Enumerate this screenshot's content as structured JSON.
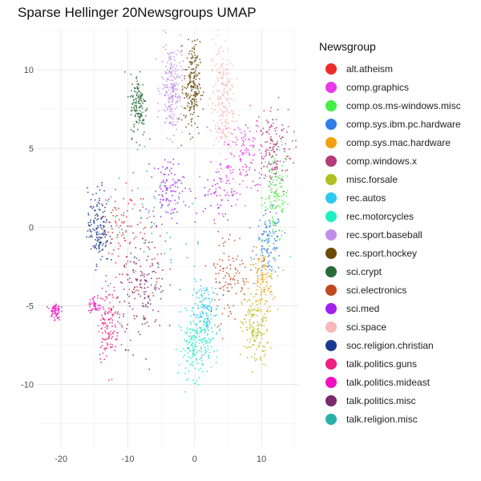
{
  "chart_data": {
    "type": "scatter",
    "title": "Sparse Hellinger 20Newsgroups UMAP",
    "xlabel": "",
    "ylabel": "",
    "xlim": [
      -23.5,
      15.5
    ],
    "ylim": [
      -14,
      12.6
    ],
    "x_ticks": [
      -20,
      -10,
      0,
      10
    ],
    "y_ticks": [
      10,
      5,
      0,
      -5,
      -10
    ],
    "grid": true,
    "legend_title": "Newsgroup",
    "legend_position": "right",
    "series": [
      {
        "name": "alt.atheism",
        "color": "#ee2b2b",
        "clusters": [
          {
            "x": -11.5,
            "y": 0,
            "sx": 1.2,
            "sy": 1.2,
            "n": 60
          },
          {
            "x": -8,
            "y": -1.5,
            "sx": 2,
            "sy": 2,
            "n": 50
          }
        ]
      },
      {
        "name": "comp.graphics",
        "color": "#e83be8",
        "clusters": [
          {
            "x": 7,
            "y": 5,
            "sx": 1.5,
            "sy": 1.2,
            "n": 90
          },
          {
            "x": 5,
            "y": 3,
            "sx": 1.5,
            "sy": 1,
            "n": 50
          }
        ]
      },
      {
        "name": "comp.os.ms-windows.misc",
        "color": "#44ee44",
        "clusters": [
          {
            "x": 12,
            "y": 2,
            "sx": 1,
            "sy": 1.5,
            "n": 140
          }
        ]
      },
      {
        "name": "comp.sys.ibm.pc.hardware",
        "color": "#2f7fe8",
        "clusters": [
          {
            "x": 11,
            "y": -1,
            "sx": 1,
            "sy": 1,
            "n": 110
          }
        ]
      },
      {
        "name": "comp.sys.mac.hardware",
        "color": "#f0a010",
        "clusters": [
          {
            "x": 10,
            "y": -3.5,
            "sx": 1,
            "sy": 1,
            "n": 110
          }
        ]
      },
      {
        "name": "comp.windows.x",
        "color": "#b43a7a",
        "clusters": [
          {
            "x": 11.5,
            "y": 5,
            "sx": 1.5,
            "sy": 1.4,
            "n": 160
          }
        ]
      },
      {
        "name": "misc.forsale",
        "color": "#b0c020",
        "clusters": [
          {
            "x": 9,
            "y": -6.5,
            "sx": 1,
            "sy": 1.2,
            "n": 150
          }
        ]
      },
      {
        "name": "rec.autos",
        "color": "#30c8f0",
        "clusters": [
          {
            "x": 1.5,
            "y": -5.5,
            "sx": 1,
            "sy": 1,
            "n": 160
          }
        ]
      },
      {
        "name": "rec.motorcycles",
        "color": "#20f0c0",
        "clusters": [
          {
            "x": 0,
            "y": -7.5,
            "sx": 1.2,
            "sy": 1,
            "n": 170
          }
        ]
      },
      {
        "name": "rec.sport.baseball",
        "color": "#c08ee8",
        "clusters": [
          {
            "x": -3.5,
            "y": 8.8,
            "sx": 0.8,
            "sy": 1.5,
            "n": 220
          }
        ]
      },
      {
        "name": "rec.sport.hockey",
        "color": "#6a4a06",
        "clusters": [
          {
            "x": -0.5,
            "y": 9,
            "sx": 0.6,
            "sy": 1.4,
            "n": 200
          }
        ]
      },
      {
        "name": "sci.crypt",
        "color": "#2a6a3a",
        "clusters": [
          {
            "x": -8.5,
            "y": 7.8,
            "sx": 0.6,
            "sy": 1,
            "n": 140
          }
        ]
      },
      {
        "name": "sci.electronics",
        "color": "#c04820",
        "clusters": [
          {
            "x": 5,
            "y": -3,
            "sx": 1.5,
            "sy": 1.5,
            "n": 110
          }
        ]
      },
      {
        "name": "sci.med",
        "color": "#a020f0",
        "clusters": [
          {
            "x": -4,
            "y": 2.5,
            "sx": 1.2,
            "sy": 1,
            "n": 100
          },
          {
            "x": 3,
            "y": 2,
            "sx": 1.5,
            "sy": 1,
            "n": 40
          }
        ]
      },
      {
        "name": "sci.space",
        "color": "#f8b8b8",
        "clusters": [
          {
            "x": 4,
            "y": 8,
            "sx": 0.9,
            "sy": 2,
            "n": 230
          }
        ]
      },
      {
        "name": "soc.religion.christian",
        "color": "#1e3a90",
        "clusters": [
          {
            "x": -14.5,
            "y": 0,
            "sx": 0.8,
            "sy": 1.2,
            "n": 150
          }
        ]
      },
      {
        "name": "talk.politics.guns",
        "color": "#ee2080",
        "clusters": [
          {
            "x": -13,
            "y": -6,
            "sx": 0.8,
            "sy": 1.2,
            "n": 130
          }
        ]
      },
      {
        "name": "talk.politics.mideast",
        "color": "#f010c0",
        "clusters": [
          {
            "x": -21,
            "y": -5.3,
            "sx": 0.4,
            "sy": 0.3,
            "n": 60
          },
          {
            "x": -15,
            "y": -5,
            "sx": 0.5,
            "sy": 0.3,
            "n": 40
          }
        ]
      },
      {
        "name": "talk.politics.misc",
        "color": "#7a2a6a",
        "clusters": [
          {
            "x": -8,
            "y": -4,
            "sx": 1.8,
            "sy": 1.6,
            "n": 160
          }
        ]
      },
      {
        "name": "talk.religion.misc",
        "color": "#28b0a8",
        "clusters": [
          {
            "x": -6,
            "y": 0,
            "sx": 4,
            "sy": 2,
            "n": 60
          }
        ]
      }
    ]
  }
}
